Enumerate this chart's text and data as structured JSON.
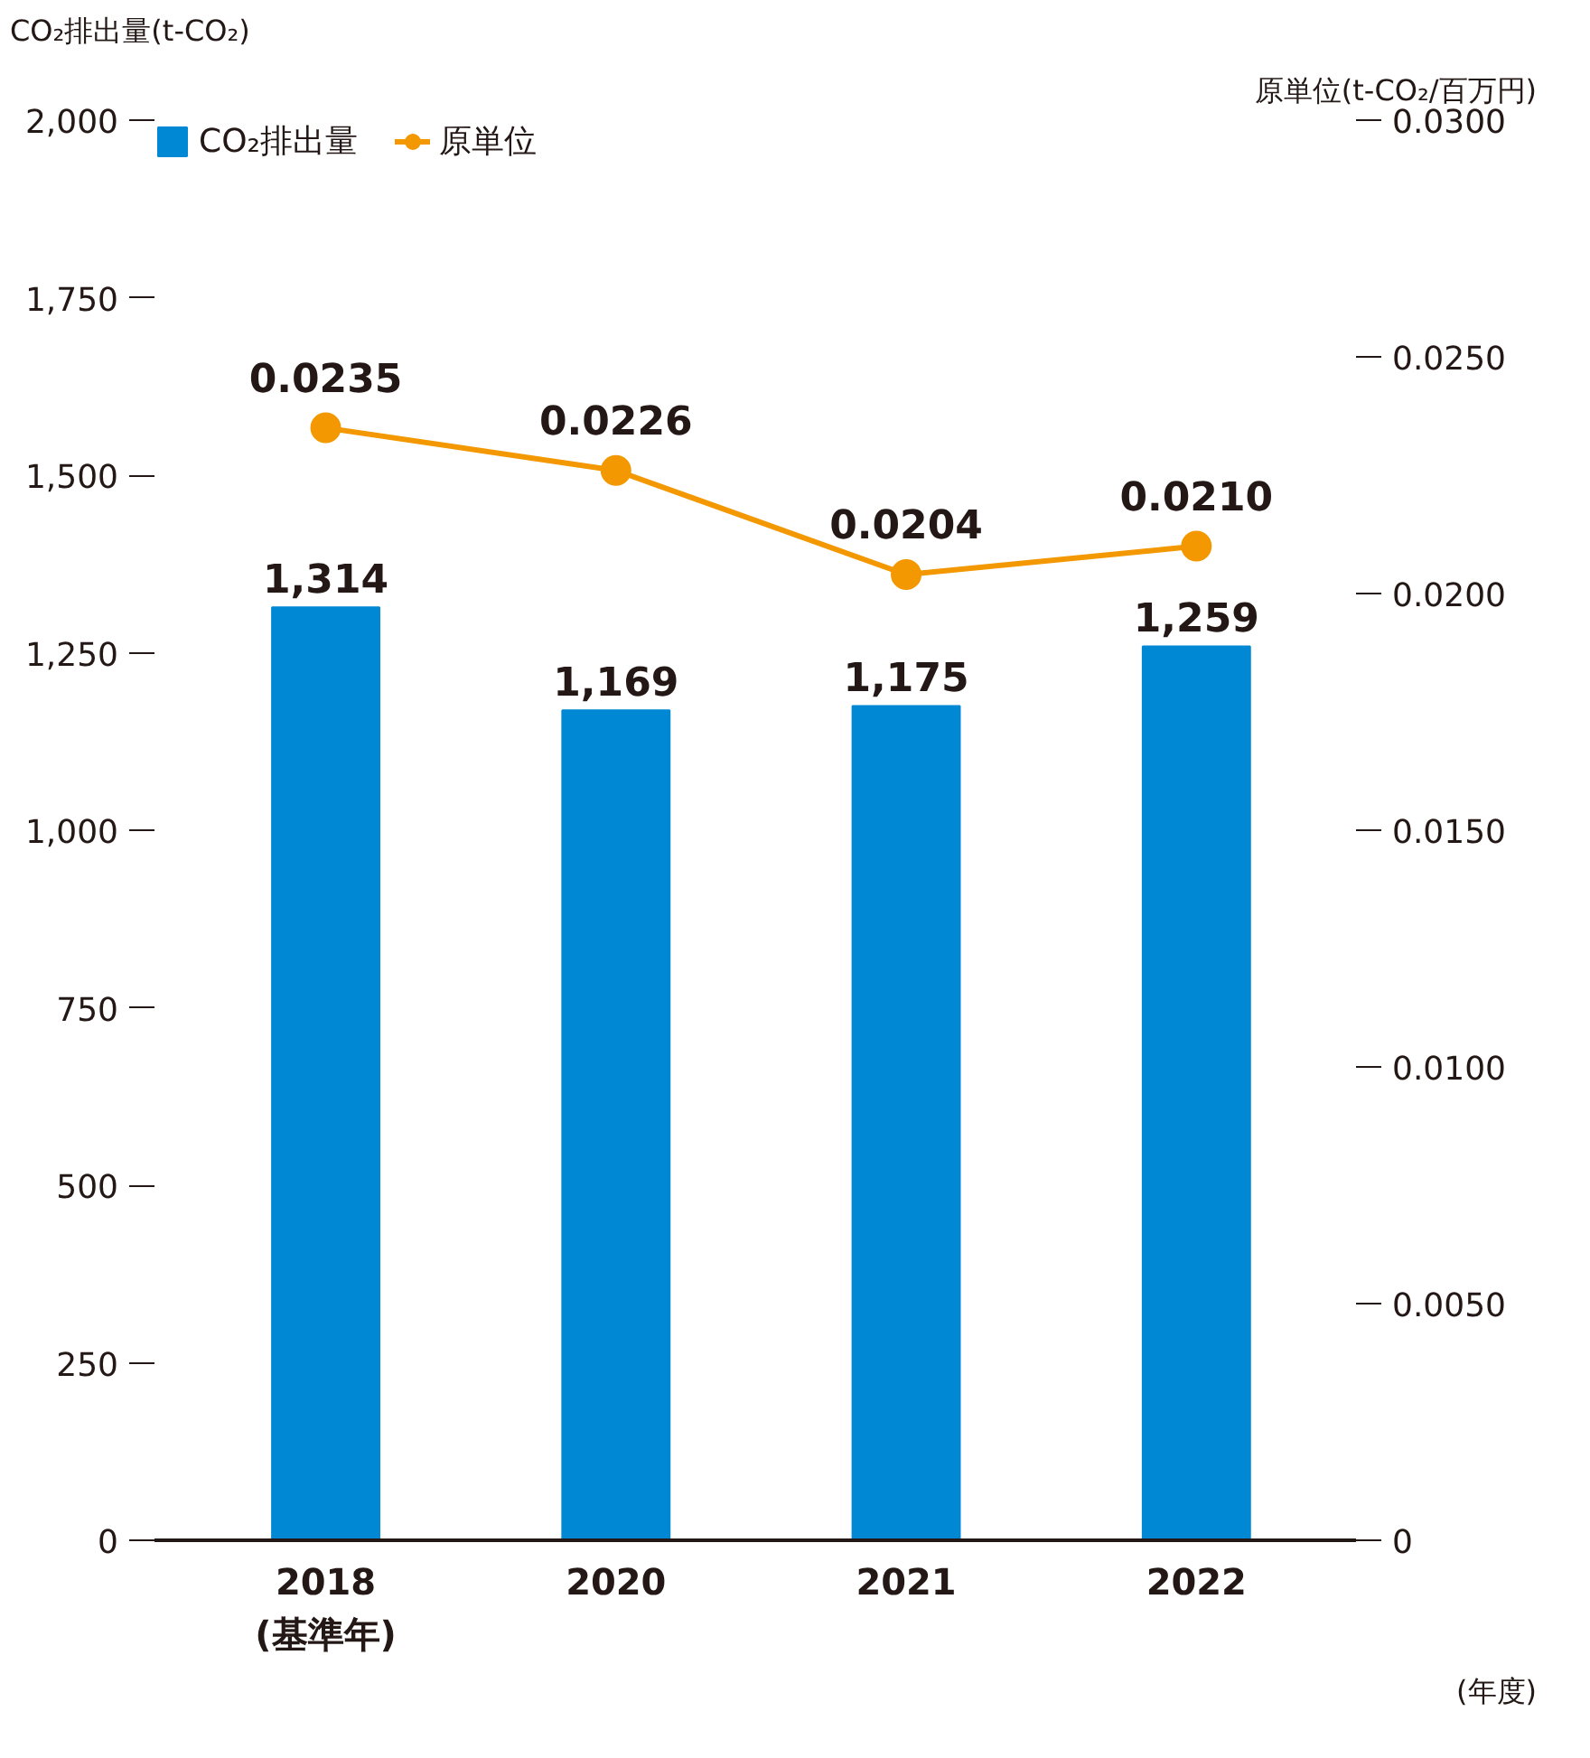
{
  "chart_data": {
    "type": "bar",
    "categories": [
      "2018\n(基準年)",
      "2020",
      "2021",
      "2022"
    ],
    "xlabel": "(年度)",
    "ylabel": "CO₂排出量(t-CO₂)",
    "y2label": "原単位(t-CO₂/百万円)",
    "series": [
      {
        "name": "CO₂排出量",
        "color": "#0088d4",
        "values": [
          1314,
          1169,
          1175,
          1259
        ],
        "value_labels": [
          "1,314",
          "1,169",
          "1,175",
          "1,259"
        ]
      },
      {
        "name": "原単位",
        "type": "line",
        "axis": "y2",
        "color": "#f39800",
        "values": [
          0.0235,
          0.0226,
          0.0204,
          0.021
        ],
        "value_labels": [
          "0.0235",
          "0.0226",
          "0.0204",
          "0.0210"
        ],
        "marker": "circle",
        "line_style": "solid"
      }
    ],
    "ylim": [
      0,
      2000
    ],
    "yticks": [
      0,
      {
        "value": 250,
        "label": "250"
      },
      {
        "value": 500,
        "label": "500"
      },
      {
        "value": 750,
        "label": "750"
      },
      {
        "value": 1000,
        "label": "1,000"
      },
      {
        "value": 1250,
        "label": "1,250"
      },
      {
        "value": 1500,
        "label": "1,500"
      },
      {
        "value": 1750,
        "label": "1,750"
      },
      {
        "value": 2000,
        "label": "2,000"
      }
    ],
    "y2lim": [
      0,
      0.03
    ],
    "y2ticks": [
      0,
      {
        "value": 0.005,
        "label": "0.0050"
      },
      {
        "value": 0.01,
        "label": "0.0100"
      },
      {
        "value": 0.015,
        "label": "0.0150"
      },
      {
        "value": 0.02,
        "label": "0.0200"
      },
      {
        "value": 0.025,
        "label": "0.0250"
      },
      {
        "value": 0.03,
        "label": "0.0300"
      }
    ],
    "grid": false,
    "legend": "top left"
  }
}
